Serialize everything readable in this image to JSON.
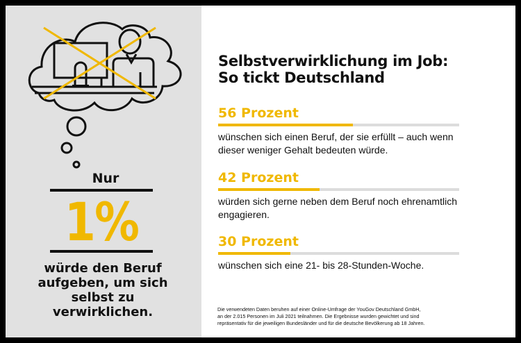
{
  "colors": {
    "accent": "#f0b800",
    "panel": "#e1e1e1",
    "text": "#111111"
  },
  "illustration": {
    "icon": "thought-cloud-crossed-out-desk-worker-icon"
  },
  "left": {
    "prefix": "Nur",
    "figure": "1%",
    "claim": "würde den Beruf aufgeben, um sich selbst zu verwirklichen."
  },
  "title": {
    "line1": "Selbstverwirklichung im Job:",
    "line2": "So tickt Deutschland"
  },
  "stats": [
    {
      "label": "56 Prozent",
      "value": 56,
      "text": "wünschen sich einen Beruf, der sie erfüllt – auch wenn dieser weniger Gehalt bedeuten würde."
    },
    {
      "label": "42 Prozent",
      "value": 42,
      "text": "würden sich gerne neben dem Beruf noch ehrenamtlich engagieren."
    },
    {
      "label": "30 Prozent",
      "value": 30,
      "text": "wünschen sich eine 21- bis 28-Stunden-Woche."
    }
  ],
  "footnote": {
    "line1": "Die verwendeten Daten beruhen auf einer Online-Umfrage der YouGov Deutschland GmbH,",
    "line2": "an der 2.015 Personen im Juli 2021 teilnahmen. Die Ergebnisse wurden gewichtet und sind",
    "line3": "repräsentativ für die jeweiligen Bundesländer und für die deutsche Bevölkerung ab 18 Jahren."
  }
}
